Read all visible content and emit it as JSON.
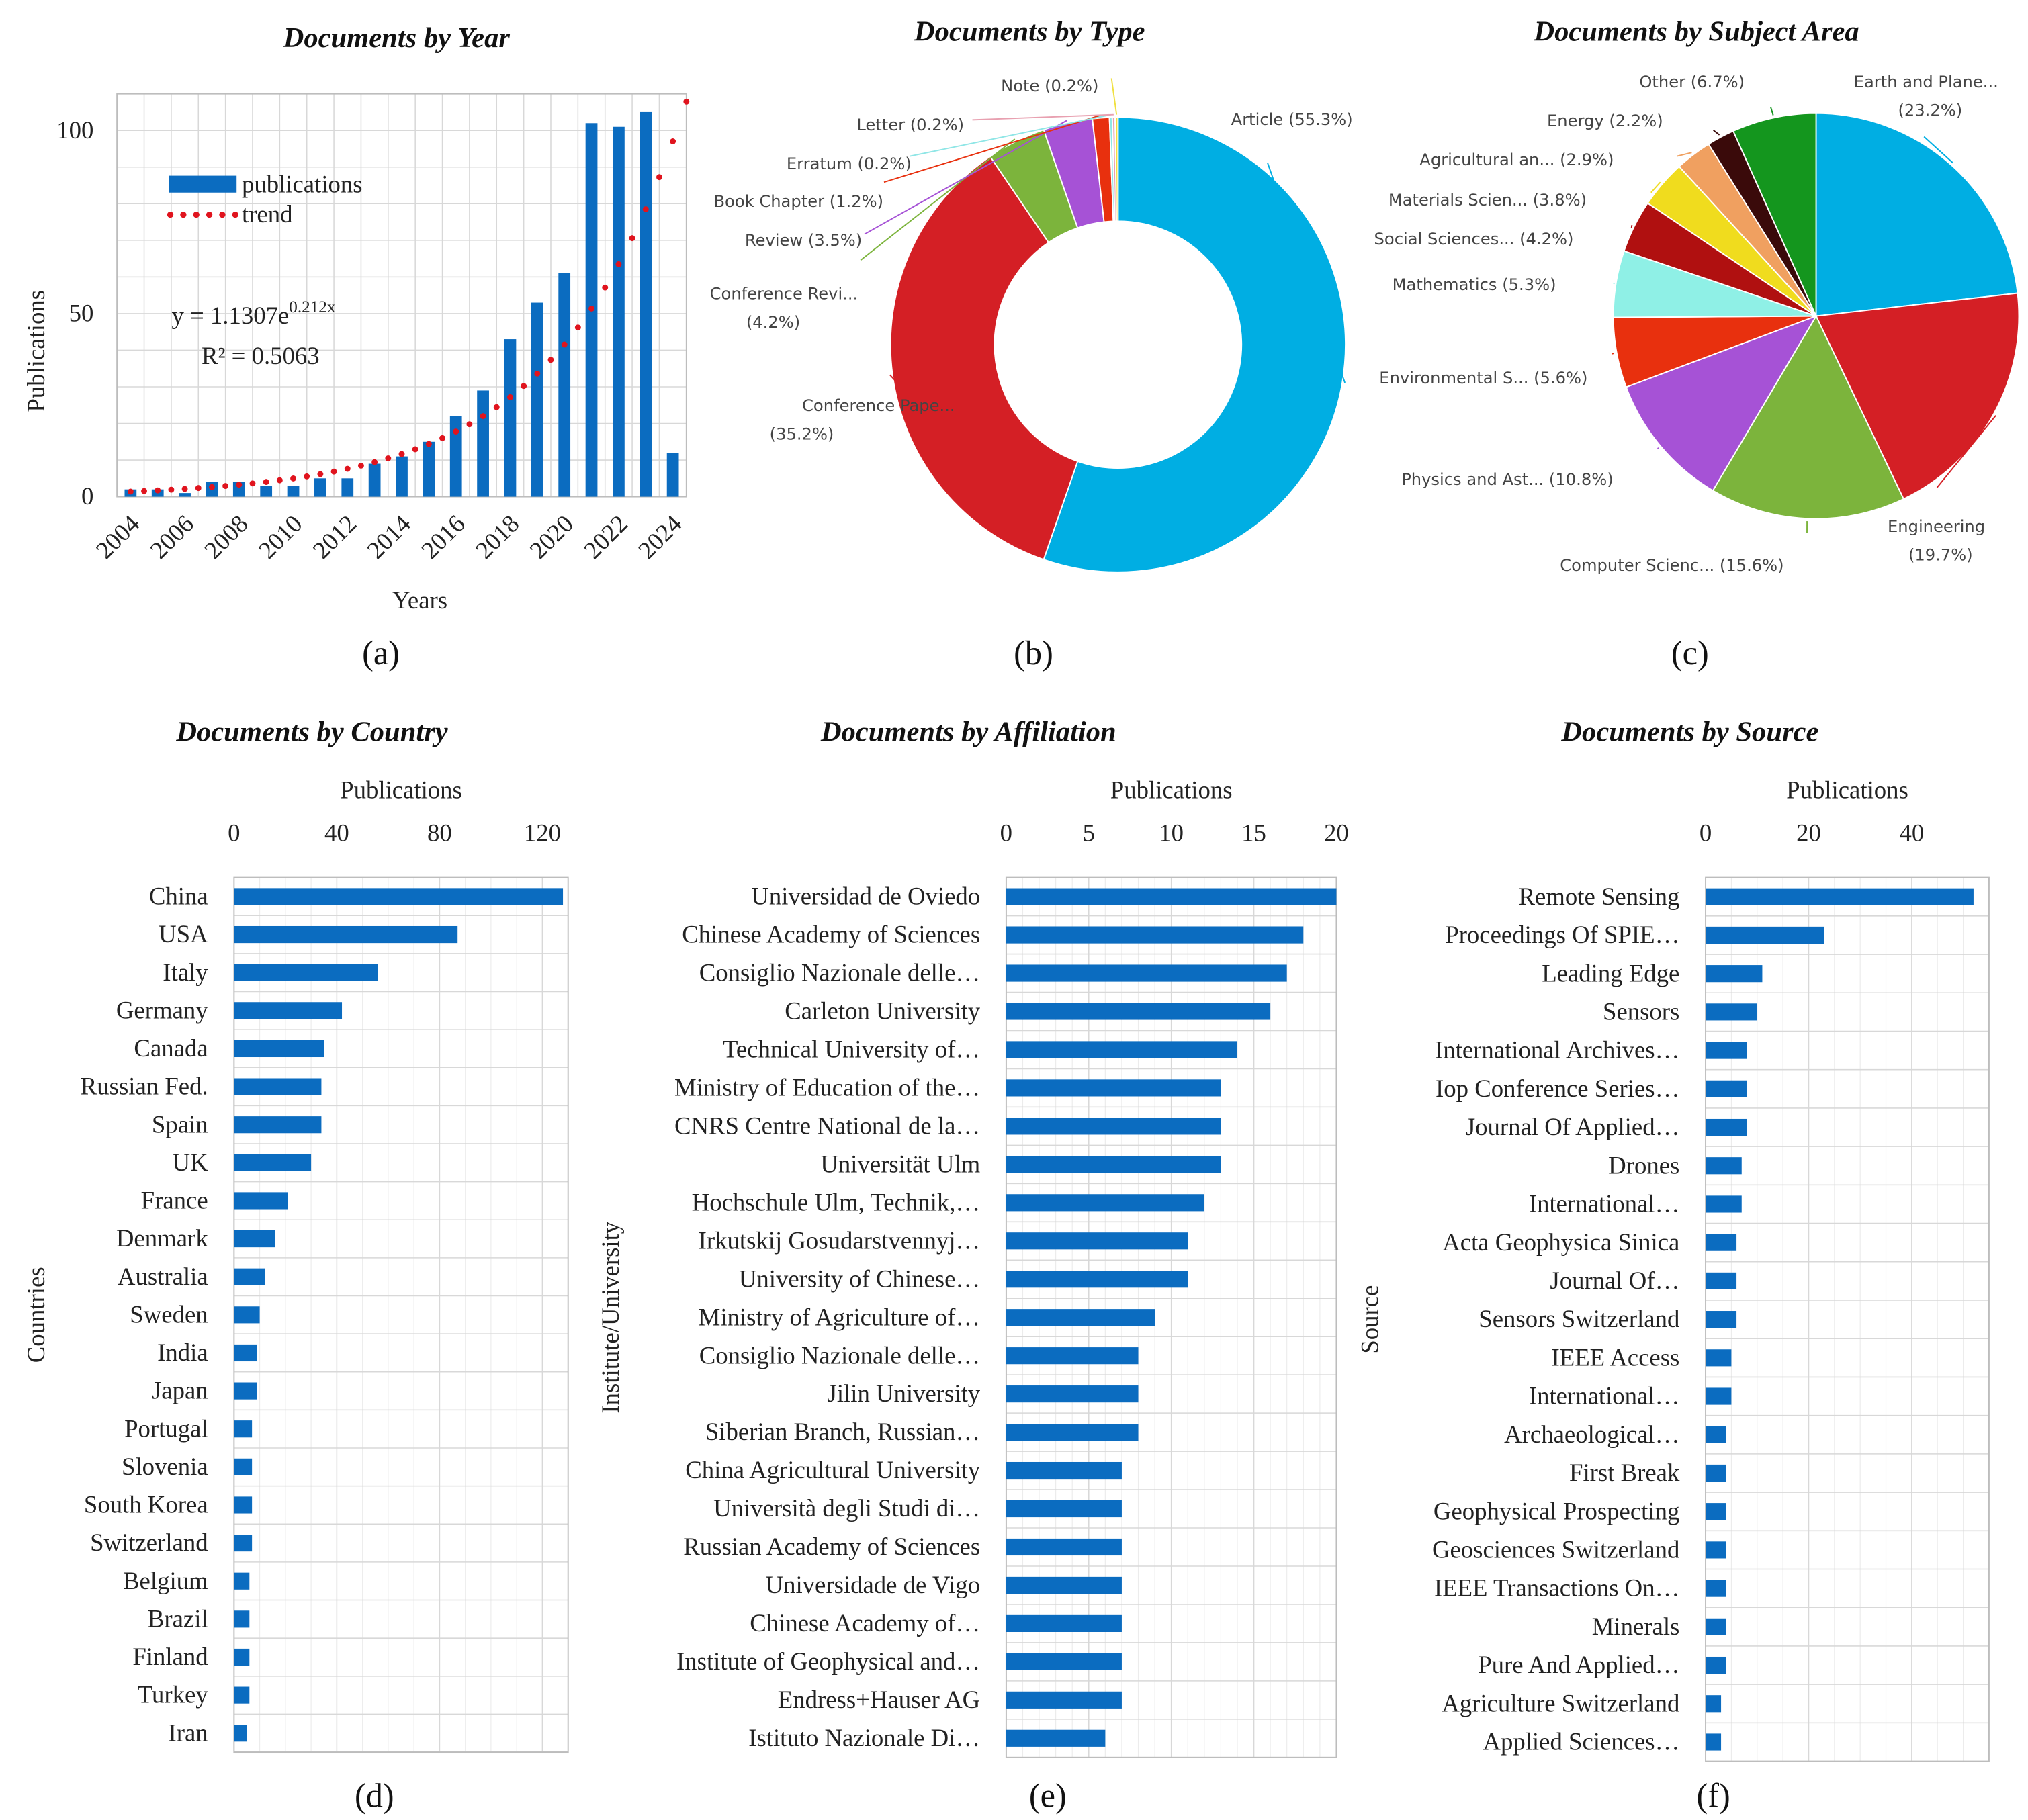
{
  "colors": {
    "bar": "#0b6cc0",
    "trend": "#e0141e"
  },
  "chart_data": [
    {
      "id": "a",
      "type": "bar",
      "title": "Documents by Year",
      "xlabel": "Years",
      "ylabel": "Publications",
      "sublabel": "(a)",
      "categories": [
        2004,
        2005,
        2006,
        2007,
        2008,
        2009,
        2010,
        2011,
        2012,
        2013,
        2014,
        2015,
        2016,
        2017,
        2018,
        2019,
        2020,
        2021,
        2022,
        2023,
        2024
      ],
      "x_tick_labels": [
        "2004",
        "2006",
        "2008",
        "2010",
        "2012",
        "2014",
        "2016",
        "2018",
        "2020",
        "2022",
        "2024"
      ],
      "y_ticks": [
        0,
        50,
        100
      ],
      "ylim": [
        0,
        110
      ],
      "grid": true,
      "series": [
        {
          "name": "publications",
          "type": "bar",
          "values": [
            2,
            2,
            1,
            4,
            4,
            3,
            3,
            5,
            5,
            9,
            11,
            15,
            22,
            29,
            43,
            53,
            61,
            102,
            101,
            105,
            12
          ]
        },
        {
          "name": "trend",
          "type": "dotted-line",
          "equation": "y = 1.1307e^(0.212x)"
        }
      ],
      "equation_text": "y = 1.1307e",
      "equation_exp": "0.212x",
      "r2_text": "R² = 0.5063",
      "legend_placement": "top-left"
    },
    {
      "id": "b",
      "type": "pie",
      "donut": true,
      "title": "Documents by Type",
      "sublabel": "(b)",
      "slices": [
        {
          "label": "Article",
          "value": 55.3,
          "color": "#00aee3"
        },
        {
          "label": "Conference Pape...",
          "value": 35.2,
          "color": "#d41f25"
        },
        {
          "label": "Conference Revi...",
          "value": 4.2,
          "color": "#7cb43c"
        },
        {
          "label": "Review",
          "value": 3.5,
          "color": "#a652d6"
        },
        {
          "label": "Book Chapter",
          "value": 1.2,
          "color": "#e8300e"
        },
        {
          "label": "Erratum",
          "value": 0.2,
          "color": "#8fe6e6"
        },
        {
          "label": "Letter",
          "value": 0.2,
          "color": "#e8a0b0"
        },
        {
          "label": "Note",
          "value": 0.2,
          "color": "#f0e040"
        }
      ]
    },
    {
      "id": "c",
      "type": "pie",
      "title": "Documents by Subject Area",
      "sublabel": "(c)",
      "slices": [
        {
          "label": "Earth and Plane...",
          "value": 23.2,
          "color": "#00aee3"
        },
        {
          "label": "Engineering",
          "value": 19.7,
          "color": "#d41f25"
        },
        {
          "label": "Computer Scienc...",
          "value": 15.6,
          "color": "#7cb43c"
        },
        {
          "label": "Physics and Ast...",
          "value": 10.8,
          "color": "#a652d6"
        },
        {
          "label": "Environmental S...",
          "value": 5.6,
          "color": "#e8300e"
        },
        {
          "label": "Mathematics",
          "value": 5.3,
          "color": "#8ff0e6"
        },
        {
          "label": "Social Sciences...",
          "value": 4.2,
          "color": "#b01010"
        },
        {
          "label": "Materials Scien...",
          "value": 3.8,
          "color": "#f0dc1e"
        },
        {
          "label": "Agricultural an...",
          "value": 2.9,
          "color": "#f0a060"
        },
        {
          "label": "Energy",
          "value": 2.2,
          "color": "#3a0a0a"
        },
        {
          "label": "Other",
          "value": 6.7,
          "color": "#14961e"
        }
      ]
    },
    {
      "id": "d",
      "type": "bar",
      "orientation": "horizontal",
      "title": "Documents by Country",
      "xlabel": "Publications",
      "ylabel": "Countries",
      "sublabel": "(d)",
      "x_ticks": [
        0,
        40,
        80,
        120
      ],
      "xlim": [
        0,
        130
      ],
      "categories": [
        "China",
        "USA",
        "Italy",
        "Germany",
        "Canada",
        "Russian Fed.",
        "Spain",
        "UK",
        "France",
        "Denmark",
        "Australia",
        "Sweden",
        "India",
        "Japan",
        "Portugal",
        "Slovenia",
        "South Korea",
        "Switzerland",
        "Belgium",
        "Brazil",
        "Finland",
        "Turkey",
        "Iran"
      ],
      "values": [
        128,
        87,
        56,
        42,
        35,
        34,
        34,
        30,
        21,
        16,
        12,
        10,
        9,
        9,
        7,
        7,
        7,
        7,
        6,
        6,
        6,
        6,
        5
      ]
    },
    {
      "id": "e",
      "type": "bar",
      "orientation": "horizontal",
      "title": "Documents by Affiliation",
      "xlabel": "Publications",
      "ylabel": "Institute/University",
      "sublabel": "(e)",
      "x_ticks": [
        0,
        5,
        10,
        15,
        20
      ],
      "xlim": [
        0,
        20
      ],
      "categories": [
        "Universidad de Oviedo",
        "Chinese Academy of Sciences",
        "Consiglio Nazionale delle…",
        "Carleton University",
        "Technical University of…",
        "Ministry of Education of the…",
        "CNRS Centre National de la…",
        "Universität Ulm",
        "Hochschule Ulm, Technik,…",
        "Irkutskij Gosudarstvennyj…",
        "University of Chinese…",
        "Ministry of Agriculture of…",
        "Consiglio Nazionale delle…",
        "Jilin University",
        "Siberian Branch, Russian…",
        "China Agricultural University",
        "Università degli Studi di…",
        "Russian Academy of Sciences",
        "Universidade de Vigo",
        "Chinese Academy of…",
        "Institute of Geophysical and…",
        "Endress+Hauser AG",
        "Istituto Nazionale Di…"
      ],
      "values": [
        20,
        18,
        17,
        16,
        14,
        13,
        13,
        13,
        12,
        11,
        11,
        9,
        8,
        8,
        8,
        7,
        7,
        7,
        7,
        7,
        7,
        7,
        6
      ]
    },
    {
      "id": "f",
      "type": "bar",
      "orientation": "horizontal",
      "title": "Documents by Source",
      "xlabel": "Publications",
      "ylabel": "Source",
      "sublabel": "(f)",
      "x_ticks": [
        0,
        20,
        40
      ],
      "xlim": [
        0,
        55
      ],
      "categories": [
        "Remote Sensing",
        "Proceedings Of SPIE…",
        "Leading Edge",
        "Sensors",
        "International Archives…",
        "Iop Conference Series…",
        "Journal Of Applied…",
        "Drones",
        "International…",
        "Acta Geophysica Sinica",
        "Journal Of…",
        "Sensors Switzerland",
        "IEEE Access",
        "International…",
        "Archaeological…",
        "First Break",
        "Geophysical Prospecting",
        "Geosciences Switzerland",
        "IEEE Transactions On…",
        "Minerals",
        "Pure And Applied…",
        "Agriculture Switzerland",
        "Applied Sciences…"
      ],
      "values": [
        52,
        23,
        11,
        10,
        8,
        8,
        8,
        7,
        7,
        6,
        6,
        6,
        5,
        5,
        4,
        4,
        4,
        4,
        4,
        4,
        4,
        3,
        3
      ]
    }
  ]
}
